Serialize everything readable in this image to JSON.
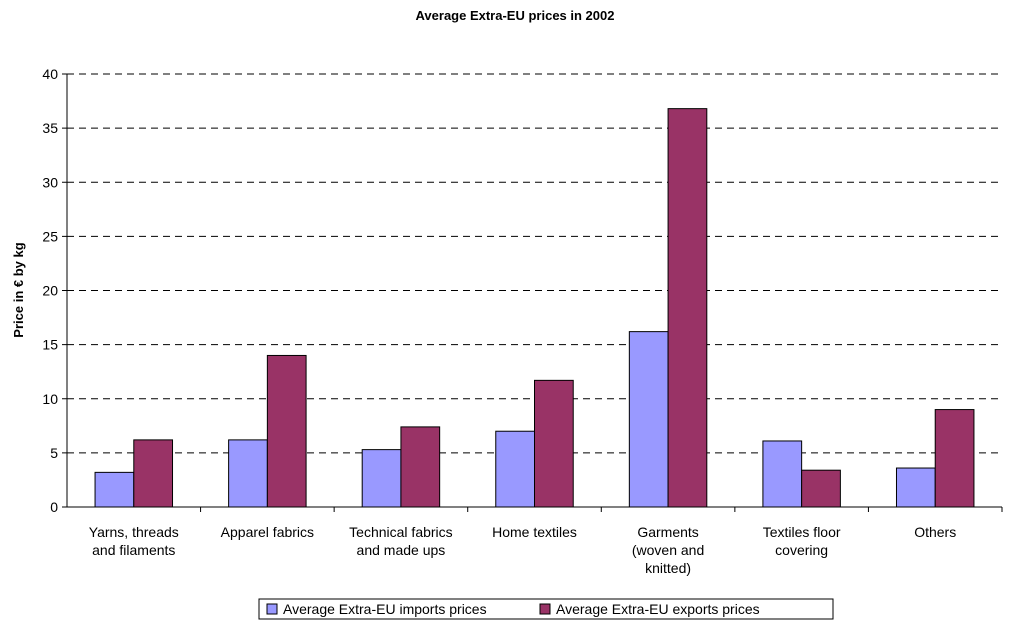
{
  "chart_data": {
    "type": "bar",
    "title": "Average Extra-EU prices in 2002",
    "ylabel": "Price in € by kg",
    "xlabel": "",
    "ylim": [
      0,
      40
    ],
    "yticks": [
      0,
      5,
      10,
      15,
      20,
      25,
      30,
      35,
      40
    ],
    "grid": "horizontal dashed",
    "legend_position": "bottom",
    "categories": [
      [
        "Yarns, threads",
        "and filaments"
      ],
      [
        "Apparel fabrics"
      ],
      [
        "Technical fabrics",
        "and made ups"
      ],
      [
        "Home textiles"
      ],
      [
        "Garments",
        "(woven and",
        "knitted)"
      ],
      [
        "Textiles floor",
        "covering"
      ],
      [
        "Others"
      ]
    ],
    "series": [
      {
        "name": "Average Extra-EU imports prices",
        "color": "#9999ff",
        "values": [
          3.2,
          6.2,
          5.3,
          7.0,
          16.2,
          6.1,
          3.6
        ]
      },
      {
        "name": "Average Extra-EU exports prices",
        "color": "#993366",
        "values": [
          6.2,
          14.0,
          7.4,
          11.7,
          36.8,
          3.4,
          9.0
        ]
      }
    ]
  }
}
